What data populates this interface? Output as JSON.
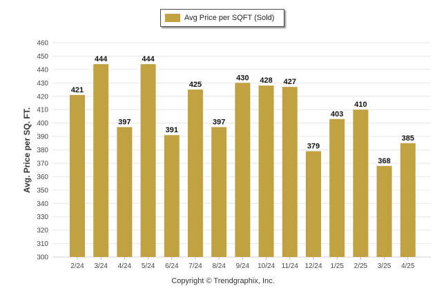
{
  "legend": {
    "label": "Avg Price per SQFT (Sold)"
  },
  "footer": {
    "copyright": "Copyright © Trendgraphix, Inc."
  },
  "colors": {
    "bar": "#C1A142",
    "grid": "#e6e6e6",
    "axis_text": "#444444"
  },
  "chart_data": {
    "type": "bar",
    "title": "",
    "xlabel": "",
    "ylabel": "Avg. Price per SQ. FT.",
    "ylim": [
      300,
      460
    ],
    "ytick_step": 10,
    "grid": true,
    "legend_position": "top-center",
    "categories": [
      "2/24",
      "3/24",
      "4/24",
      "5/24",
      "6/24",
      "7/24",
      "8/24",
      "9/24",
      "10/24",
      "11/24",
      "12/24",
      "1/25",
      "2/25",
      "3/25",
      "4/25"
    ],
    "series": [
      {
        "name": "Avg Price per SQFT (Sold)",
        "values": [
          421,
          444,
          397,
          444,
          391,
          425,
          397,
          430,
          428,
          427,
          379,
          403,
          410,
          368,
          385
        ]
      }
    ]
  }
}
